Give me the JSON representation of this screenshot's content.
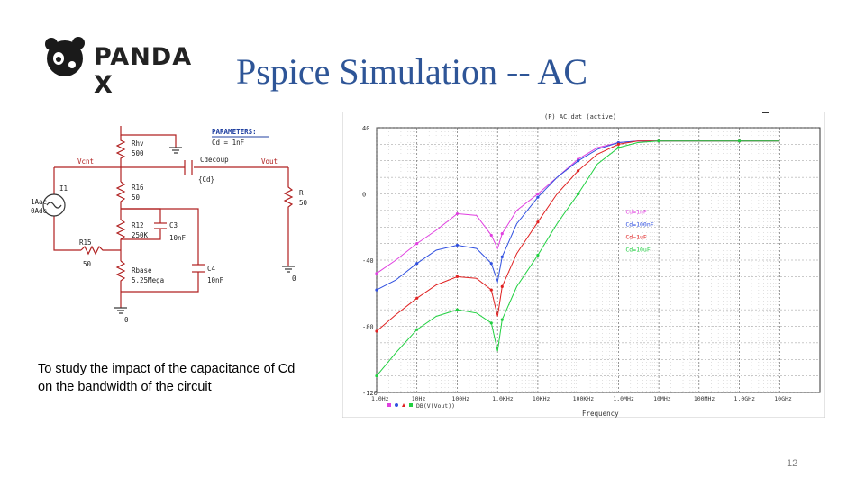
{
  "slide": {
    "brand": "PANDA X",
    "title": "Pspice Simulation -- AC",
    "caption_line1": "To study the impact of the capacitance of Cd",
    "caption_line2": "on the bandwidth of the circuit",
    "page_number": "12"
  },
  "schematic": {
    "params_title": "PARAMETERS:",
    "params_value": "Cd = 1nF",
    "net_vcnt": "Vcnt",
    "net_vout": "Vout",
    "source_name": "I1",
    "source_ac": "1Aac",
    "source_dc": "0Adc",
    "rhv_name": "Rhv",
    "rhv_value": "500",
    "r16_name": "R16",
    "r16_value": "50",
    "r12_name": "R12",
    "r12_value": "250K",
    "c3_name": "C3",
    "c3_value": "10nF",
    "r15_name": "R15",
    "r15_value": "50",
    "rbase_name": "Rbase",
    "rbase_value": "5.25Mega",
    "c4_name": "C4",
    "c4_value": "10nF",
    "cdecoup_name": "Cdecoup",
    "cdecoup_value": "{Cd}",
    "r_name": "R",
    "r_value": "50",
    "gnd_label": "0"
  },
  "chart_data": {
    "type": "line",
    "title": "(P) AC.dat (active)",
    "xlabel": "Frequency",
    "x_scale": "log",
    "xlim": [
      1,
      100000000000
    ],
    "x_tick_labels": [
      "1.0Hz",
      "10Hz",
      "100Hz",
      "1.0KHz",
      "10KHz",
      "100KHz",
      "1.0MHz",
      "10MHz",
      "100MHz",
      "1.0GHz",
      "10GHz"
    ],
    "ylim": [
      -120,
      40
    ],
    "y_tick_labels": [
      "40",
      "0",
      "-40",
      "-80",
      "-120"
    ],
    "y_ticks": [
      40,
      0,
      -40,
      -80,
      -120
    ],
    "legend_placement": "right",
    "trace_label": "DB(V(Vout))",
    "grid": true,
    "series": [
      {
        "name": "Cd=1nF",
        "color": "#e040e0",
        "x": [
          1,
          3,
          10,
          30,
          100,
          300,
          700,
          1000,
          1300,
          3000,
          10000,
          30000,
          100000,
          300000,
          1000000,
          3000000,
          10000000,
          100000000,
          1000000000,
          10000000000
        ],
        "y": [
          -48,
          -40,
          -30,
          -22,
          -12,
          -13,
          -25,
          -33,
          -24,
          -10,
          0,
          10,
          21,
          28,
          31,
          32,
          32,
          32,
          32,
          32
        ]
      },
      {
        "name": "Cd=100nF",
        "color": "#3050e0",
        "x": [
          1,
          3,
          10,
          30,
          100,
          300,
          700,
          1000,
          1300,
          3000,
          10000,
          30000,
          100000,
          300000,
          1000000,
          3000000,
          10000000,
          100000000,
          1000000000,
          10000000000
        ],
        "y": [
          -58,
          -52,
          -42,
          -34,
          -31,
          -33,
          -42,
          -53,
          -38,
          -18,
          -2,
          10,
          20,
          27,
          31,
          32,
          32,
          32,
          32,
          32
        ]
      },
      {
        "name": "Cd=1uF",
        "color": "#e02020",
        "x": [
          1,
          3,
          10,
          30,
          100,
          300,
          700,
          1000,
          1300,
          3000,
          10000,
          30000,
          100000,
          300000,
          1000000,
          3000000,
          10000000,
          100000000,
          1000000000,
          10000000000
        ],
        "y": [
          -83,
          -73,
          -63,
          -55,
          -50,
          -51,
          -58,
          -74,
          -56,
          -36,
          -17,
          0,
          14,
          24,
          30,
          32,
          32,
          32,
          32,
          32
        ]
      },
      {
        "name": "Cd=10uF",
        "color": "#20d040",
        "x": [
          1,
          3,
          10,
          30,
          100,
          300,
          700,
          1000,
          1300,
          3000,
          10000,
          30000,
          100000,
          300000,
          1000000,
          3000000,
          10000000,
          100000000,
          1000000000,
          10000000000
        ],
        "y": [
          -110,
          -96,
          -82,
          -74,
          -70,
          -72,
          -78,
          -95,
          -76,
          -56,
          -37,
          -18,
          0,
          18,
          28,
          31,
          32,
          32,
          32,
          32
        ]
      }
    ]
  }
}
